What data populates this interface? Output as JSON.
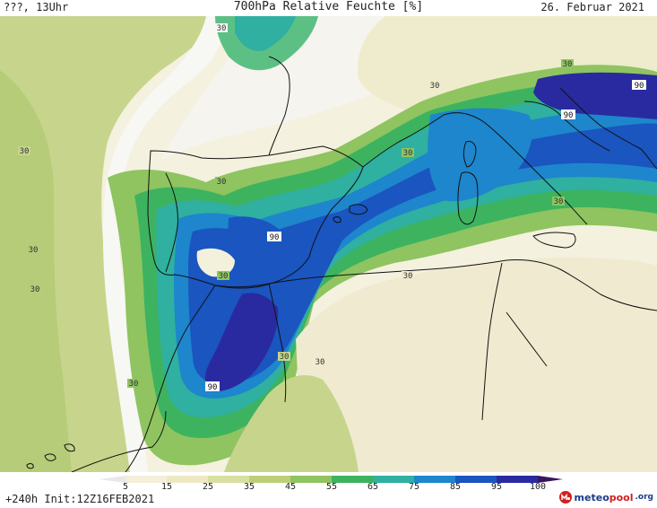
{
  "header": {
    "left": "???, 13Uhr",
    "title": "700hPa Relative Feuchte [%]",
    "date": "26. Februar 2021"
  },
  "footer": {
    "run_info": "+240h Init:12Z16FEB2021",
    "brand_part1": "meteo",
    "brand_part2": "pool",
    "brand_part3": ".org"
  },
  "legend": {
    "ticks": [
      "5",
      "15",
      "25",
      "35",
      "45",
      "55",
      "65",
      "75",
      "85",
      "95",
      "100"
    ],
    "colors": [
      "#f3efda",
      "#eee9c4",
      "#d9dfa0",
      "#bccf78",
      "#8fc460",
      "#3db360",
      "#2fb0a0",
      "#1e86cc",
      "#1a55c0",
      "#2a2aa0",
      "#3a1560"
    ]
  },
  "contour_labels": [
    "30",
    "90"
  ],
  "colors": {
    "dry": "#f3efda",
    "sea_light": "#f6f6f6",
    "coast": "#111111"
  }
}
